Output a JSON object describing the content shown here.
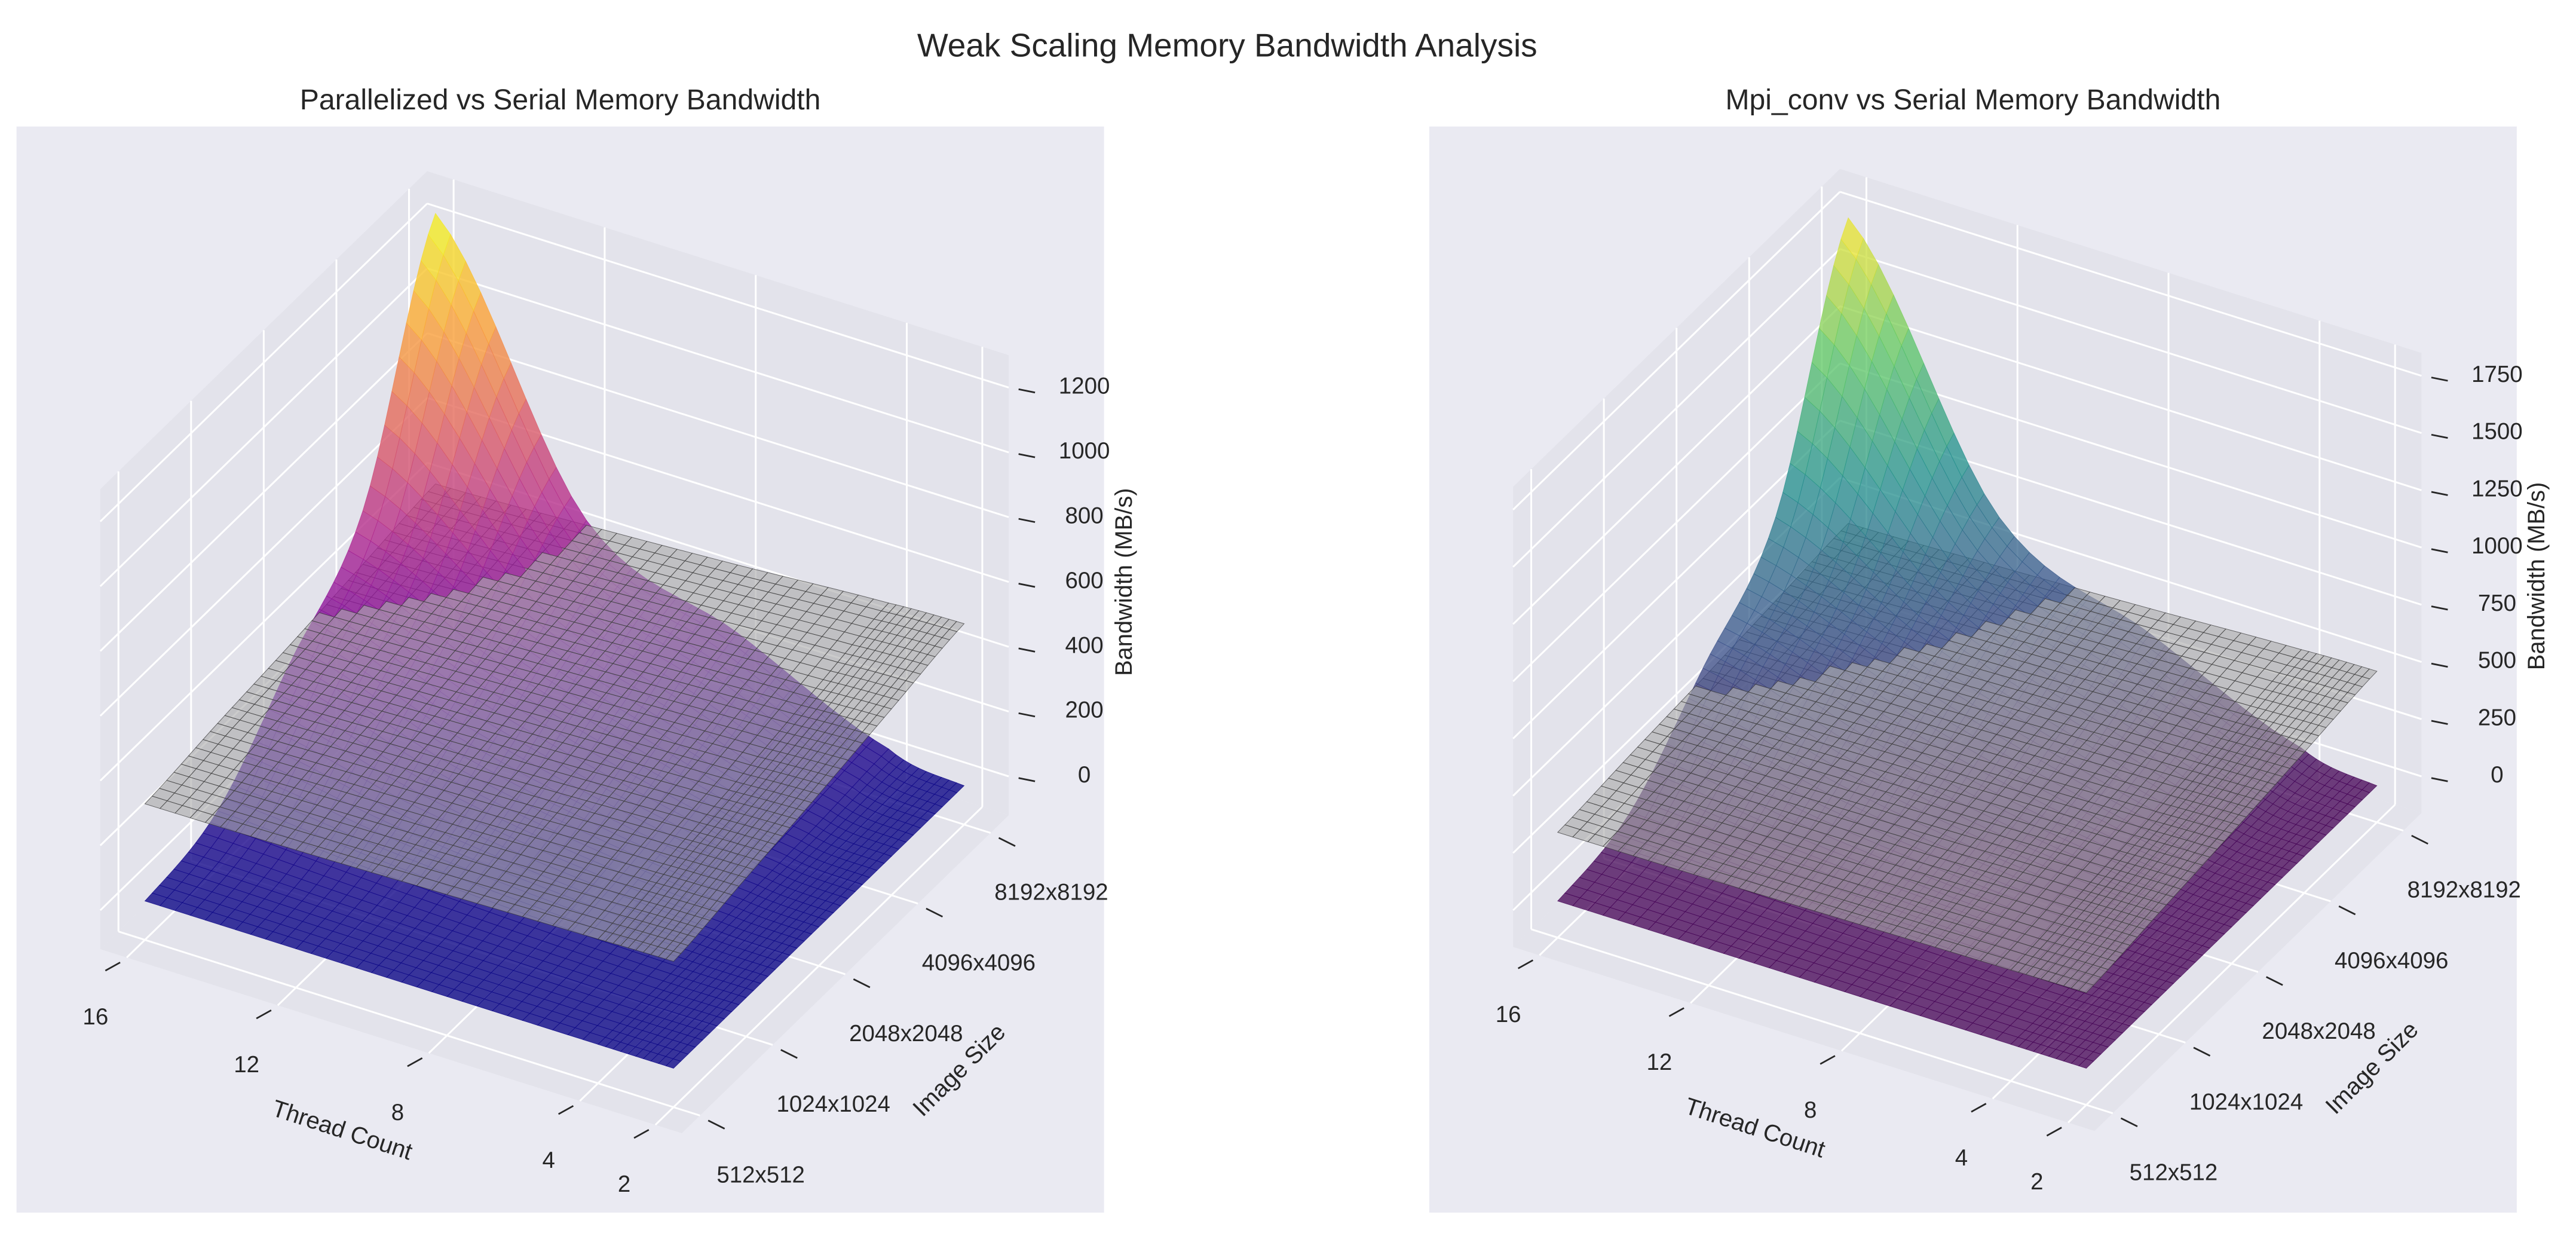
{
  "title": "Weak Scaling Memory Bandwidth Analysis",
  "chart_data": [
    {
      "type": "surface",
      "title": "Parallelized vs Serial Memory Bandwidth",
      "xlabel": "Thread Count",
      "ylabel": "Image Size",
      "zlabel": "Bandwidth (MB/s)",
      "x": [
        2,
        4,
        8,
        12,
        16
      ],
      "xlim": [
        1.3,
        16.7
      ],
      "xticks": [
        2,
        4,
        8,
        12,
        16
      ],
      "categories": [
        "512x512",
        "1024x1024",
        "2048x2048",
        "4096x4096",
        "8192x8192"
      ],
      "zlim": [
        -120,
        1300
      ],
      "zticks": [
        0,
        200,
        400,
        600,
        800,
        1000,
        1200
      ],
      "series": [
        {
          "colormap": "plasma",
          "alpha": 0.8,
          "values": [
            [
              0,
              0,
              0,
              0,
              0
            ],
            [
              0,
              0,
              10,
              30,
              60
            ],
            [
              0,
              10,
              60,
              150,
              300
            ],
            [
              0,
              20,
              150,
              300,
              550
            ],
            [
              0,
              40,
              250,
              450,
              1250
            ]
          ]
        },
        {
          "color": "#a8a8a8",
          "alpha": 0.6,
          "edgecolor": "#333333",
          "values": [
            [
              330,
              325,
              315,
              305,
              300
            ],
            [
              370,
              365,
              350,
              340,
              330
            ],
            [
              410,
              400,
              385,
              370,
              355
            ],
            [
              455,
              445,
              425,
              405,
              385
            ],
            [
              500,
              490,
              460,
              435,
              415
            ]
          ]
        }
      ]
    },
    {
      "type": "surface",
      "title": "Mpi_conv vs Serial Memory Bandwidth",
      "xlabel": "Thread Count",
      "ylabel": "Image Size",
      "zlabel": "Bandwidth (MB/s)",
      "x": [
        2,
        4,
        8,
        12,
        16
      ],
      "xlim": [
        1.3,
        16.7
      ],
      "xticks": [
        2,
        4,
        8,
        12,
        16
      ],
      "categories": [
        "512x512",
        "1024x1024",
        "2048x2048",
        "4096x4096",
        "8192x8192"
      ],
      "zlim": [
        -160,
        1850
      ],
      "zticks": [
        0,
        250,
        500,
        750,
        1000,
        1250,
        1500,
        1750
      ],
      "series": [
        {
          "colormap": "viridis",
          "alpha": 0.75,
          "values": [
            [
              0,
              0,
              0,
              0,
              0
            ],
            [
              0,
              0,
              15,
              40,
              80
            ],
            [
              0,
              15,
              80,
              200,
              400
            ],
            [
              0,
              30,
              200,
              420,
              750
            ],
            [
              0,
              60,
              350,
              650,
              1750
            ]
          ]
        },
        {
          "color": "#a8a8a8",
          "alpha": 0.6,
          "edgecolor": "#333333",
          "values": [
            [
              330,
              325,
              315,
              305,
              300
            ],
            [
              370,
              365,
              350,
              340,
              330
            ],
            [
              410,
              400,
              385,
              370,
              355
            ],
            [
              455,
              445,
              425,
              405,
              385
            ],
            [
              500,
              490,
              460,
              435,
              415
            ]
          ]
        }
      ]
    }
  ]
}
